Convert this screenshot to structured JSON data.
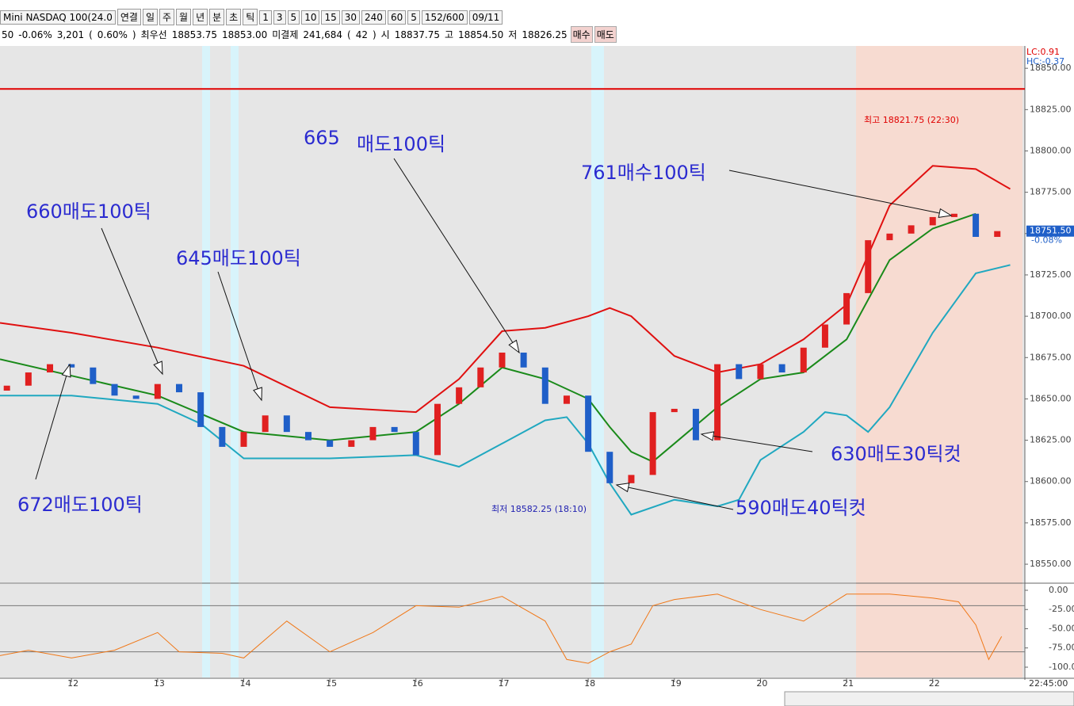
{
  "toolbar": {
    "row1": [
      "Mini NASDAQ 100(24.0",
      "연결",
      "일",
      "주",
      "월",
      "년",
      "분",
      "초",
      "틱",
      "1",
      "3",
      "5",
      "10",
      "15",
      "30",
      "240",
      "60",
      "5",
      "152/600",
      "09/11"
    ],
    "row2": [
      "50",
      "-0.06%",
      "3,201",
      "(",
      "0.60%",
      ")",
      "최우선",
      "18853.75",
      "18853.00",
      "미결제",
      "241,684",
      "(",
      "42",
      ")",
      "시",
      "18837.75",
      "고",
      "18854.50",
      "저",
      "18826.25",
      "매수",
      "매도"
    ]
  },
  "chart_data": {
    "type": "candlestick",
    "x": [
      11.25,
      11.5,
      11.75,
      12,
      12.25,
      12.5,
      12.75,
      13,
      13.25,
      13.5,
      13.75,
      14,
      14.25,
      14.5,
      14.75,
      15,
      15.25,
      15.5,
      15.75,
      16,
      16.25,
      16.5,
      16.75,
      17,
      17.25,
      17.5,
      17.75,
      18,
      18.25,
      18.5,
      18.75,
      19,
      19.25,
      19.5,
      19.75,
      20,
      20.25,
      20.5,
      20.75,
      21,
      21.25,
      21.5,
      21.75,
      22,
      22.25,
      22.5,
      22.75
    ],
    "open": [
      18655,
      18658,
      18666,
      18671,
      18669,
      18659,
      18652,
      18650,
      18659,
      18654,
      18633,
      18621,
      18630,
      18640,
      18630,
      18625,
      18621,
      18625,
      18633,
      18630,
      18616,
      18647,
      18657,
      18669,
      18678,
      18669,
      18647,
      18652,
      18618,
      18599,
      18604,
      18642,
      18644,
      18625,
      18671,
      18662,
      18671,
      18666,
      18681,
      18695,
      18714,
      18746,
      18750,
      18755,
      18760,
      18762,
      18748
    ],
    "close": [
      18658,
      18666,
      18671,
      18669,
      18659,
      18652,
      18650,
      18659,
      18654,
      18633,
      18621,
      18630,
      18640,
      18630,
      18625,
      18621,
      18625,
      18633,
      18630,
      18616,
      18647,
      18657,
      18669,
      18678,
      18669,
      18647,
      18652,
      18618,
      18599,
      18604,
      18642,
      18644,
      18625,
      18671,
      18662,
      18671,
      18666,
      18681,
      18695,
      18714,
      18746,
      18750,
      18755,
      18760,
      18762,
      18748,
      18751.5
    ],
    "up_color": "#e02020",
    "down_color": "#1f5fc8",
    "bands": [
      {
        "name": "upper",
        "color": "#e01010",
        "x": [
          11.17,
          12,
          13,
          14,
          15,
          16,
          16.5,
          17,
          17.5,
          18,
          18.25,
          18.5,
          19,
          19.5,
          20,
          20.5,
          21,
          21.5,
          22,
          22.5,
          22.9
        ],
        "values": [
          18696,
          18690,
          18681,
          18670,
          18645,
          18642,
          18662,
          18691,
          18693,
          18700,
          18705,
          18700,
          18676,
          18666,
          18671,
          18686,
          18707,
          18767,
          18791,
          18789,
          18777
        ]
      },
      {
        "name": "middle",
        "color": "#1a8a1a",
        "x": [
          11.17,
          12,
          13,
          14,
          15,
          16,
          16.5,
          17,
          17.5,
          18,
          18.25,
          18.5,
          18.75,
          19,
          19.5,
          20,
          20.5,
          21,
          21.5,
          22,
          22.5
        ],
        "values": [
          18674,
          18664,
          18652,
          18630,
          18625,
          18630,
          18647,
          18669,
          18662,
          18650,
          18633,
          18618,
          18612,
          18623,
          18645,
          18662,
          18666,
          18686,
          18734,
          18753,
          18762
        ]
      },
      {
        "name": "lower",
        "color": "#20a8c0",
        "x": [
          11.17,
          12,
          13,
          13.5,
          14,
          15,
          16,
          16.5,
          17,
          17.5,
          17.75,
          18,
          18.25,
          18.5,
          19,
          19.5,
          19.75,
          20,
          20.5,
          20.75,
          21,
          21.25,
          21.5,
          22,
          22.5,
          22.9
        ],
        "values": [
          18652,
          18652,
          18647,
          18635,
          18614,
          18614,
          18616,
          18609,
          18623,
          18637,
          18639,
          18623,
          18599,
          18580,
          18589,
          18585,
          18589,
          18613,
          18630,
          18642,
          18640,
          18630,
          18645,
          18690,
          18726,
          18731
        ]
      }
    ],
    "hline": 18837.5,
    "xlim": [
      11.17,
      23.07
    ],
    "xticks": [
      12,
      13,
      14,
      15,
      16,
      17,
      18,
      19,
      20,
      21,
      22
    ],
    "ylim": [
      18539,
      18863.5
    ],
    "yticks": [
      {
        "value": 18550,
        "label": "18550.00"
      },
      {
        "value": 18575,
        "label": "18575.00"
      },
      {
        "value": 18600,
        "label": "18600.00"
      },
      {
        "value": 18625,
        "label": "18625.00"
      },
      {
        "value": 18650,
        "label": "18650.00"
      },
      {
        "value": 18675,
        "label": "18675.00"
      },
      {
        "value": 18700,
        "label": "18700.00"
      },
      {
        "value": 18725,
        "label": "18725.00"
      },
      {
        "value": 18750,
        "label": "18750.00"
      },
      {
        "value": 18775,
        "label": "18775.00"
      },
      {
        "value": 18800,
        "label": "18800.00"
      },
      {
        "value": 18825,
        "label": "18825.00"
      },
      {
        "value": 18850,
        "label": "18850.00"
      }
    ],
    "last": {
      "value": 18751.5,
      "label": "18751.50"
    },
    "last_change": "-0.08%",
    "lc": "LC:0.91",
    "hc": "HC:-0.37",
    "high_label": "최고 18821.75 (22:30)",
    "low_label": "최저 18582.25 (18:10)",
    "time_label": "22:45:00",
    "annotations": [
      "660매도100틱",
      "645매도100틱",
      "665",
      "매도100틱",
      "761매수100틱",
      "672매도100틱",
      "630매도30틱컷",
      "590매도40틱컷"
    ],
    "indicator": {
      "color": "#f07818",
      "x": [
        11.17,
        11.5,
        12,
        12.5,
        13,
        13.25,
        13.75,
        14,
        14.5,
        15,
        15.5,
        16,
        16.5,
        17,
        17.5,
        17.75,
        18,
        18.25,
        18.5,
        18.75,
        19,
        19.5,
        20,
        20.5,
        21,
        21.5,
        22,
        22.3,
        22.5,
        22.65,
        22.8
      ],
      "values": [
        -85,
        -78,
        -88,
        -78,
        -55,
        -80,
        -82,
        -88,
        -40,
        -80,
        -55,
        -20,
        -22,
        -8,
        -40,
        -90,
        -95,
        -80,
        -70,
        -20,
        -12,
        -5,
        -25,
        -40,
        -5,
        -5,
        -10,
        -15,
        -45,
        -90,
        -60
      ],
      "levels": [
        -20,
        -80
      ],
      "ylim": [
        -113.4,
        8.2
      ],
      "yticks": [
        {
          "value": 0,
          "label": "0.00"
        },
        {
          "value": -25,
          "label": "-25.00"
        },
        {
          "value": -50,
          "label": "-50.00"
        },
        {
          "value": -75,
          "label": "-75.00"
        },
        {
          "value": -100,
          "label": "-100.00"
        }
      ]
    }
  }
}
